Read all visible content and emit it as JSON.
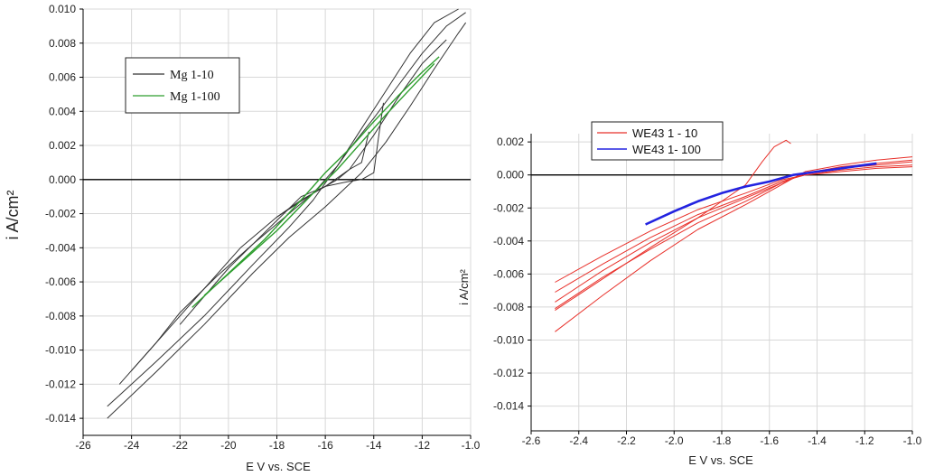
{
  "chart_data": [
    {
      "type": "line",
      "xlabel": "E   V vs. SCE",
      "ylabel": "i  A/cm²",
      "xlim": [
        -2.6,
        -1.0
      ],
      "ylim": [
        -0.015,
        0.01
      ],
      "xticks": [
        -2.6,
        -2.4,
        -2.2,
        -2.0,
        -1.8,
        -1.6,
        -1.4,
        -1.2,
        -1.0
      ],
      "xtick_labels": [
        "-26",
        "-24",
        "-22",
        "-20",
        "-18",
        "-16",
        "-14",
        "-12",
        "-1.0"
      ],
      "yticks": [
        -0.014,
        -0.012,
        -0.01,
        -0.008,
        -0.006,
        -0.004,
        -0.002,
        0.0,
        0.002,
        0.004,
        0.006,
        0.008,
        0.01
      ],
      "ytick_labels": [
        "-0.014",
        "-0.012",
        "-0.010",
        "-0.008",
        "-0.006",
        "-0.004",
        "-0.002",
        "0.000",
        "0.002",
        "0.004",
        "0.006",
        "0.008",
        "0.010"
      ],
      "grid": true,
      "zero_line": true,
      "legend_position": "upper-left",
      "series": [
        {
          "name": "Mg 1-10",
          "color": "#333333",
          "traces": [
            {
              "x": [
                -2.5,
                -2.3,
                -2.1,
                -1.9,
                -1.75,
                -1.65,
                -1.5,
                -1.4,
                -1.3,
                -1.2,
                -1.1,
                -1.02
              ],
              "y": [
                -0.0133,
                -0.0107,
                -0.008,
                -0.005,
                -0.0028,
                -0.0012,
                0.0018,
                0.0036,
                0.0055,
                0.0074,
                0.009,
                0.0098
              ]
            },
            {
              "x": [
                -2.5,
                -2.3,
                -2.1,
                -1.9,
                -1.75,
                -1.6,
                -1.45,
                -1.35,
                -1.25,
                -1.15,
                -1.05,
                -1.02
              ],
              "y": [
                -0.014,
                -0.0113,
                -0.0085,
                -0.0055,
                -0.0034,
                -0.0016,
                0.0004,
                0.0022,
                0.0043,
                0.0065,
                0.0086,
                0.0092
              ]
            },
            {
              "x": [
                -2.45,
                -2.3,
                -2.2,
                -2.05,
                -1.9,
                -1.75,
                -1.65,
                -1.55,
                -1.45,
                -1.35,
                -1.25,
                -1.15,
                -1.05
              ],
              "y": [
                -0.012,
                -0.0096,
                -0.0078,
                -0.0057,
                -0.0038,
                -0.002,
                -0.0008,
                0.0008,
                0.003,
                0.0052,
                0.0074,
                0.0092,
                0.01
              ]
            },
            {
              "x": [
                -2.2,
                -2.0,
                -1.8,
                -1.7,
                -1.6,
                -1.5,
                -1.45,
                -1.4,
                -1.38,
                -1.36
              ],
              "y": [
                -0.0085,
                -0.0052,
                -0.0024,
                -0.001,
                -0.0004,
                -0.0001,
                0.0,
                0.0004,
                0.0025,
                0.0045
              ]
            },
            {
              "x": [
                -1.8,
                -1.65,
                -1.55,
                -1.5,
                -1.45,
                -1.42
              ],
              "y": [
                -0.0022,
                -0.0008,
                0.0,
                0.0006,
                0.001,
                0.0028
              ]
            },
            {
              "x": [
                -2.4,
                -2.25,
                -2.1,
                -1.95,
                -1.8,
                -1.7,
                -1.6,
                -1.5,
                -1.4,
                -1.3,
                -1.2,
                -1.1
              ],
              "y": [
                -0.0112,
                -0.0088,
                -0.0064,
                -0.004,
                -0.0022,
                -0.0012,
                -0.0004,
                0.0006,
                0.0026,
                0.0048,
                0.0068,
                0.0082
              ]
            }
          ]
        },
        {
          "name": "Mg 1-100",
          "color": "#2e9e2e",
          "traces": [
            {
              "x": [
                -2.15,
                -2.0,
                -1.85,
                -1.7,
                -1.6,
                -1.5,
                -1.4,
                -1.3,
                -1.2,
                -1.13
              ],
              "y": [
                -0.0075,
                -0.0055,
                -0.0035,
                -0.0012,
                0.0004,
                0.0018,
                0.0034,
                0.0049,
                0.0063,
                0.0072
              ]
            },
            {
              "x": [
                -2.1,
                -1.95,
                -1.8,
                -1.65,
                -1.55,
                -1.45,
                -1.35,
                -1.25,
                -1.15
              ],
              "y": [
                -0.0068,
                -0.0049,
                -0.003,
                -0.0008,
                0.0006,
                0.0022,
                0.0038,
                0.0053,
                0.0068
              ]
            }
          ]
        }
      ]
    },
    {
      "type": "line",
      "xlabel": "E     V vs. SCE",
      "ylabel": "i  A/cm²",
      "xlim": [
        -2.6,
        -1.0
      ],
      "ylim": [
        -0.0155,
        0.0025
      ],
      "xticks": [
        -2.6,
        -2.4,
        -2.2,
        -2.0,
        -1.8,
        -1.6,
        -1.4,
        -1.2,
        -1.0
      ],
      "xtick_labels": [
        "-2.6",
        "-2.4",
        "-2.2",
        "-2.0",
        "-1.8",
        "-1.6",
        "-1.4",
        "-1.2",
        "-1.0"
      ],
      "yticks": [
        -0.014,
        -0.012,
        -0.01,
        -0.008,
        -0.006,
        -0.004,
        -0.002,
        0.0,
        0.002
      ],
      "ytick_labels": [
        "-0.014",
        "-0.012",
        "-0.010",
        "-0.008",
        "-0.006",
        "-0.004",
        "-0.002",
        "0.000",
        "0.002"
      ],
      "grid": true,
      "zero_line": true,
      "legend_position": "upper-left",
      "series": [
        {
          "name": "WE43 1 - 10",
          "color": "#e8302a",
          "traces": [
            {
              "x": [
                -2.5,
                -2.3,
                -2.1,
                -1.9,
                -1.7,
                -1.55,
                -1.45,
                -1.3,
                -1.15,
                -1.0
              ],
              "y": [
                -0.0095,
                -0.0073,
                -0.0052,
                -0.0033,
                -0.0018,
                -0.0006,
                0.0002,
                0.0006,
                0.0009,
                0.0011
              ]
            },
            {
              "x": [
                -2.5,
                -2.3,
                -2.1,
                -1.9,
                -1.7,
                -1.55,
                -1.45,
                -1.3,
                -1.15,
                -1.0
              ],
              "y": [
                -0.0081,
                -0.0062,
                -0.0045,
                -0.0029,
                -0.0016,
                -0.0005,
                0.0001,
                0.0005,
                0.0007,
                0.0009
              ]
            },
            {
              "x": [
                -2.5,
                -2.3,
                -2.1,
                -1.9,
                -1.7,
                -1.55,
                -1.45,
                -1.3,
                -1.15,
                -1.0
              ],
              "y": [
                -0.0077,
                -0.0058,
                -0.0041,
                -0.0026,
                -0.0014,
                -0.0005,
                0.0001,
                0.0004,
                0.0006,
                0.0008
              ]
            },
            {
              "x": [
                -2.5,
                -2.3,
                -2.1,
                -1.9,
                -1.7,
                -1.55,
                -1.45,
                -1.3,
                -1.15,
                -1.0
              ],
              "y": [
                -0.0071,
                -0.0054,
                -0.0038,
                -0.0024,
                -0.0013,
                -0.0004,
                0.0,
                0.0003,
                0.0005,
                0.0006
              ]
            },
            {
              "x": [
                -2.5,
                -2.3,
                -2.1,
                -1.9,
                -1.7,
                -1.55,
                -1.45,
                -1.3,
                -1.15,
                -1.0
              ],
              "y": [
                -0.0065,
                -0.0049,
                -0.0034,
                -0.0021,
                -0.0011,
                -0.0003,
                0.0,
                0.0002,
                0.0004,
                0.0005
              ]
            },
            {
              "x": [
                -2.5,
                -2.3,
                -2.1,
                -1.9,
                -1.8,
                -1.7,
                -1.63,
                -1.58,
                -1.53,
                -1.51
              ],
              "y": [
                -0.0082,
                -0.0063,
                -0.0044,
                -0.0026,
                -0.0016,
                -0.0006,
                0.0008,
                0.0017,
                0.0021,
                0.0019
              ]
            }
          ]
        },
        {
          "name": "WE43 1- 100",
          "color": "#2323e0",
          "traces": [
            {
              "x": [
                -2.12,
                -2.0,
                -1.9,
                -1.8,
                -1.7,
                -1.6,
                -1.5,
                -1.4,
                -1.3,
                -1.2,
                -1.15
              ],
              "y": [
                -0.003,
                -0.0022,
                -0.0016,
                -0.0011,
                -0.0007,
                -0.0004,
                0.0,
                0.0002,
                0.0004,
                0.0006,
                0.0007
              ]
            }
          ]
        }
      ]
    }
  ]
}
